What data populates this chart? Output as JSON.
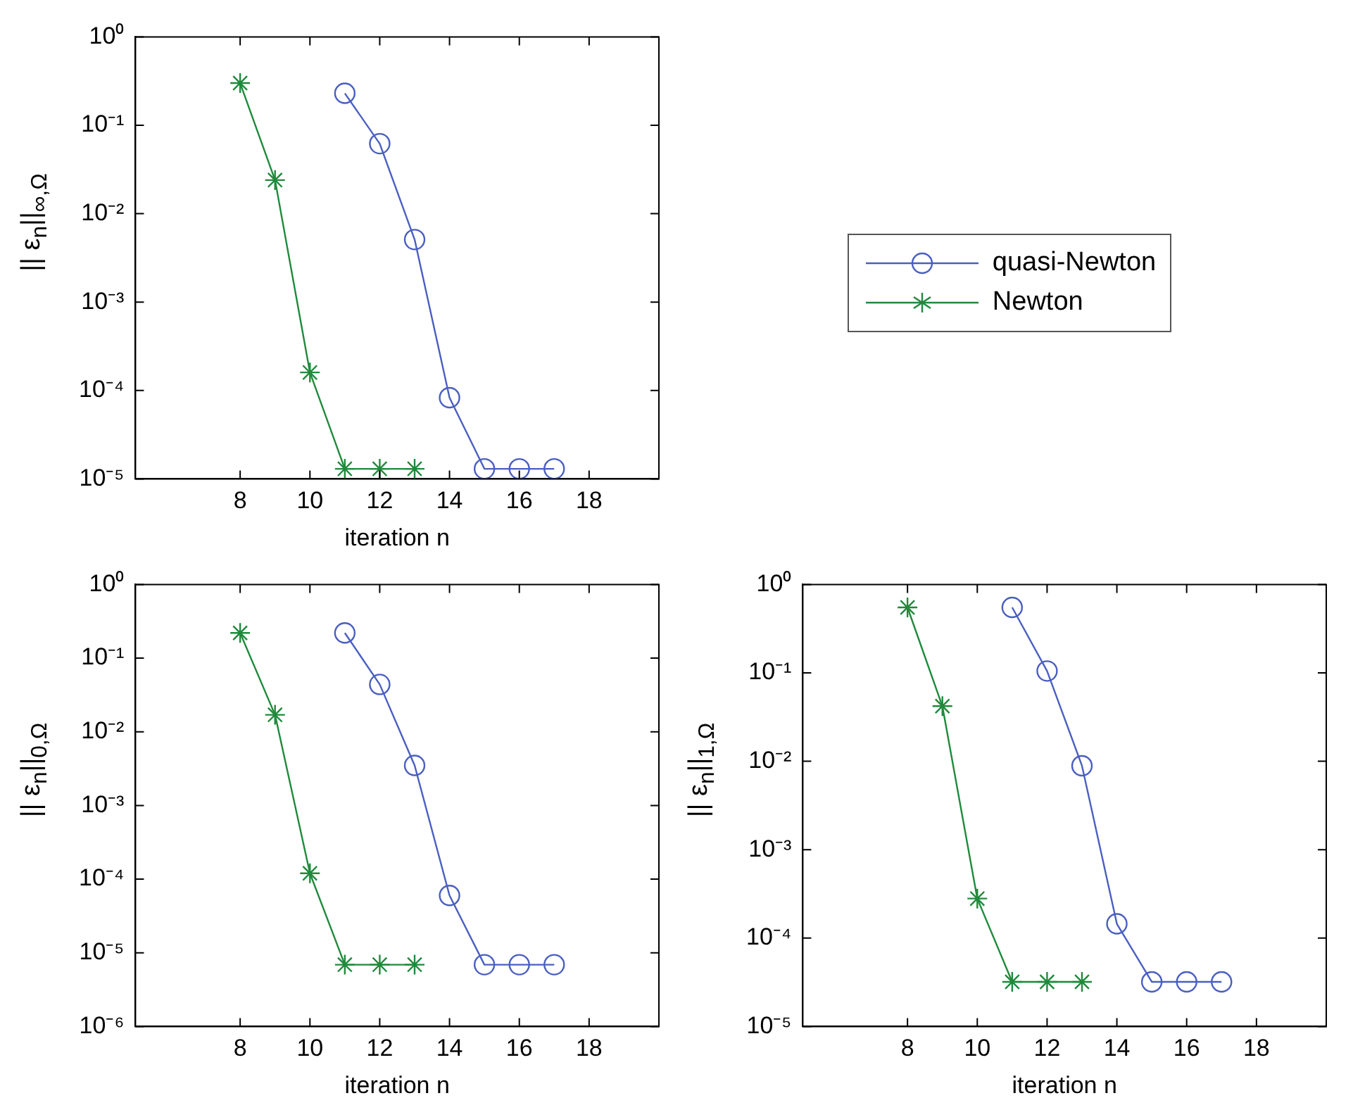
{
  "chart_data": [
    {
      "type": "line",
      "xlabel": "iteration n",
      "ylabel": "|| ε$_{n}$||$_{∞,Ω}$",
      "log": "y",
      "grid": false,
      "legend": "right",
      "line_style": "solid",
      "xlim": [
        5,
        20
      ],
      "xticks": [
        8,
        10,
        12,
        14,
        16,
        18
      ],
      "ylim": [
        1e-05,
        1
      ],
      "yticks": [
        {
          "value": 1e-05,
          "label": "10⁻⁵"
        },
        {
          "value": 0.0001,
          "label": "10⁻⁴"
        },
        {
          "value": 0.001,
          "label": "10⁻³"
        },
        {
          "value": 0.01,
          "label": "10⁻²"
        },
        {
          "value": 0.1,
          "label": "10⁻¹"
        },
        {
          "value": 1,
          "label": "10⁰"
        }
      ],
      "series": [
        {
          "name": "quasi-Newton",
          "color": "#4a5fc1",
          "marker": "circle",
          "x": [
            11,
            12,
            13,
            14,
            15,
            16,
            17
          ],
          "values": [
            0.23,
            0.062,
            0.0051,
            8.3e-05,
            1.3e-05,
            1.3e-05,
            1.3e-05
          ]
        },
        {
          "name": "Newton",
          "color": "#1f8a3b",
          "marker": "cross",
          "x": [
            8,
            9,
            10,
            11,
            12,
            13
          ],
          "values": [
            0.3,
            0.024,
            0.00016,
            1.3e-05,
            1.3e-05,
            1.3e-05
          ]
        }
      ]
    },
    {
      "type": "line",
      "xlabel": "iteration n",
      "ylabel": "|| ε$_{n}$||$_{0,Ω}$",
      "log": "y",
      "grid": false,
      "line_style": "solid",
      "xlim": [
        5,
        20
      ],
      "xticks": [
        8,
        10,
        12,
        14,
        16,
        18
      ],
      "ylim": [
        1e-06,
        1
      ],
      "yticks": [
        {
          "value": 1e-06,
          "label": "10⁻⁶"
        },
        {
          "value": 1e-05,
          "label": "10⁻⁵"
        },
        {
          "value": 0.0001,
          "label": "10⁻⁴"
        },
        {
          "value": 0.001,
          "label": "10⁻³"
        },
        {
          "value": 0.01,
          "label": "10⁻²"
        },
        {
          "value": 0.1,
          "label": "10⁻¹"
        },
        {
          "value": 1,
          "label": "10⁰"
        }
      ],
      "series": [
        {
          "color": "#4a5fc1",
          "marker": "circle",
          "x": [
            11,
            12,
            13,
            14,
            15,
            16,
            17
          ],
          "values": [
            0.22,
            0.044,
            0.0035,
            6e-05,
            6.9e-06,
            6.9e-06,
            6.9e-06
          ]
        },
        {
          "color": "#1f8a3b",
          "marker": "cross",
          "x": [
            8,
            9,
            10,
            11,
            12,
            13
          ],
          "values": [
            0.22,
            0.017,
            0.00012,
            6.9e-06,
            6.9e-06,
            6.9e-06
          ]
        }
      ]
    },
    {
      "type": "line",
      "xlabel": "iteration n",
      "ylabel": "|| ε$_{n}$||$_{1,Ω}$",
      "log": "y",
      "grid": false,
      "line_style": "solid",
      "xlim": [
        5,
        20
      ],
      "xticks": [
        8,
        10,
        12,
        14,
        16,
        18
      ],
      "ylim": [
        1e-05,
        1
      ],
      "yticks": [
        {
          "value": 1e-05,
          "label": "10⁻⁵"
        },
        {
          "value": 0.0001,
          "label": "10⁻⁴"
        },
        {
          "value": 0.001,
          "label": "10⁻³"
        },
        {
          "value": 0.01,
          "label": "10⁻²"
        },
        {
          "value": 0.1,
          "label": "10⁻¹"
        },
        {
          "value": 1,
          "label": "10⁰"
        }
      ],
      "series": [
        {
          "color": "#4a5fc1",
          "marker": "circle",
          "x": [
            11,
            12,
            13,
            14,
            15,
            16,
            17
          ],
          "values": [
            0.55,
            0.105,
            0.0089,
            0.000145,
            3.2e-05,
            3.2e-05,
            3.2e-05
          ]
        },
        {
          "color": "#1f8a3b",
          "marker": "cross",
          "x": [
            8,
            9,
            10,
            11,
            12,
            13
          ],
          "values": [
            0.55,
            0.042,
            0.00028,
            3.2e-05,
            3.2e-05,
            3.2e-05
          ]
        }
      ]
    }
  ]
}
